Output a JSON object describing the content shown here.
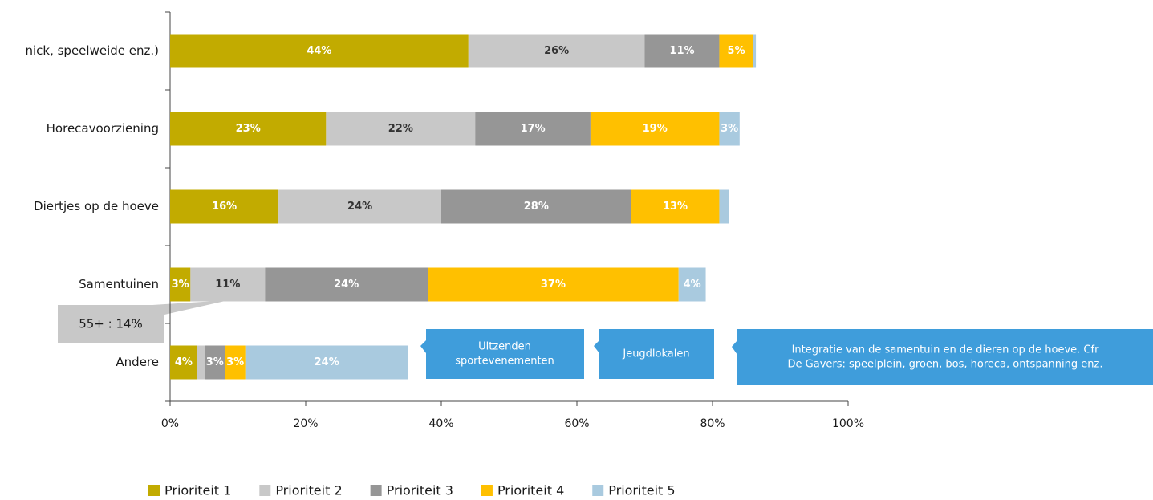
{
  "chart_data": {
    "type": "stacked-barh",
    "categories": [
      "nick, speelweide enz.)",
      "Horecavoorziening",
      "Diertjes op de hoeve",
      "Samentuinen",
      "Andere"
    ],
    "series": [
      {
        "name": "Prioriteit 1",
        "color": "#c2ab00",
        "values": [
          44,
          23,
          16,
          3,
          4
        ],
        "value_labels": [
          "44%",
          "23%",
          "16%",
          "3%",
          "4%"
        ]
      },
      {
        "name": "Prioriteit 2",
        "color": "#c8c8c8",
        "values": [
          26,
          22,
          24,
          11,
          1.1
        ],
        "value_labels": [
          "26%",
          "22%",
          "24%",
          "11%",
          null
        ]
      },
      {
        "name": "Prioriteit 3",
        "color": "#969696",
        "values": [
          11,
          17,
          28,
          24,
          3
        ],
        "value_labels": [
          "11%",
          "17%",
          "28%",
          "24%",
          "3%"
        ]
      },
      {
        "name": "Prioriteit 4",
        "color": "#ffc000",
        "values": [
          5,
          19,
          13,
          37,
          3
        ],
        "value_labels": [
          "5%",
          "19%",
          "13%",
          "37%",
          "3%"
        ]
      },
      {
        "name": "Prioriteit 5",
        "color": "#a9cadf",
        "values": [
          0.4,
          3,
          1.4,
          4,
          24
        ],
        "value_labels": [
          null,
          "3%",
          null,
          "4%",
          "24%"
        ]
      }
    ],
    "xlim": [
      0,
      100
    ],
    "xticks": [
      {
        "value": 0,
        "label": "0%"
      },
      {
        "value": 20,
        "label": "20%"
      },
      {
        "value": 40,
        "label": "40%"
      },
      {
        "value": 60,
        "label": "60%"
      },
      {
        "value": 80,
        "label": "80%"
      },
      {
        "value": 100,
        "label": "100%"
      }
    ],
    "legend": "bottom",
    "annotations": [
      {
        "lines": [
          "55+ : 14%"
        ]
      },
      {
        "lines": [
          "Uitzenden",
          "sportevenementen"
        ]
      },
      {
        "lines": [
          "Jeugdlokalen"
        ]
      },
      {
        "lines": [
          "Integratie van de samentuin en de dieren op de hoeve. Cfr",
          "De Gavers: speelplein, groen, bos, horeca, ontspanning enz."
        ]
      }
    ]
  }
}
